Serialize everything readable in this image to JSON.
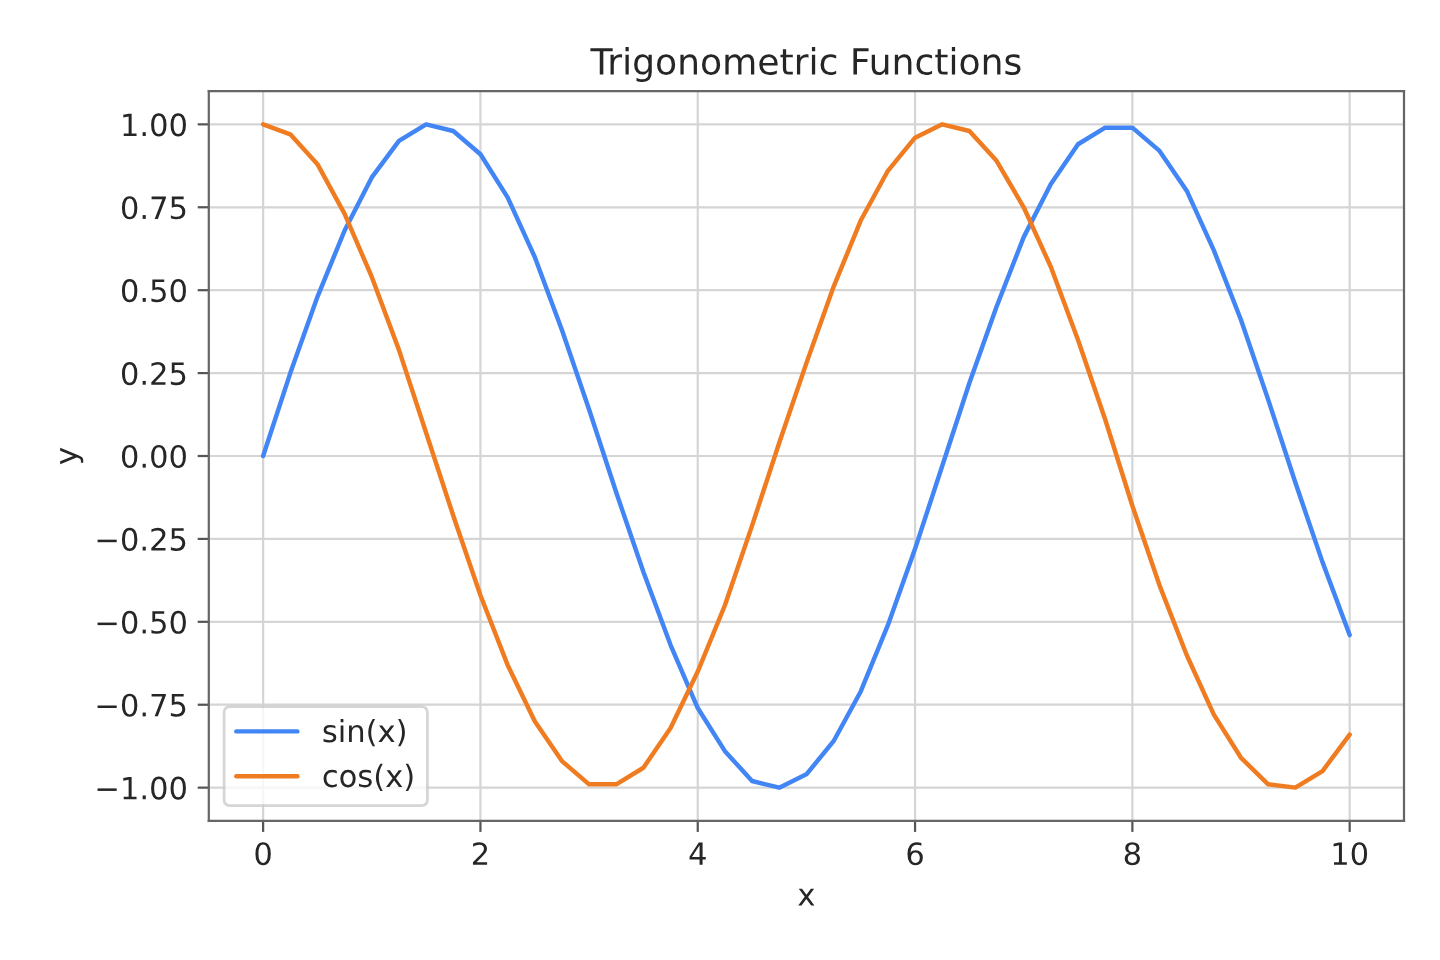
{
  "chart_data": {
    "type": "line",
    "title": "Trigonometric Functions",
    "xlabel": "x",
    "ylabel": "y",
    "x": [
      0,
      0.25,
      0.5,
      0.75,
      1,
      1.25,
      1.5,
      1.75,
      2,
      2.25,
      2.5,
      2.75,
      3,
      3.25,
      3.5,
      3.75,
      4,
      4.25,
      4.5,
      4.75,
      5,
      5.25,
      5.5,
      5.75,
      6,
      6.25,
      6.5,
      6.75,
      7,
      7.25,
      7.5,
      7.75,
      8,
      8.25,
      8.5,
      8.75,
      9,
      9.25,
      9.5,
      9.75,
      10
    ],
    "series": [
      {
        "name": "sin(x)",
        "color": "#4285f4",
        "values": [
          0,
          0.25,
          0.48,
          0.68,
          0.84,
          0.95,
          1.0,
          0.98,
          0.91,
          0.78,
          0.6,
          0.38,
          0.14,
          -0.11,
          -0.35,
          -0.57,
          -0.76,
          -0.89,
          -0.98,
          -1.0,
          -0.96,
          -0.86,
          -0.71,
          -0.51,
          -0.28,
          -0.03,
          0.22,
          0.45,
          0.66,
          0.82,
          0.94,
          0.99,
          0.99,
          0.92,
          0.8,
          0.62,
          0.41,
          0.17,
          -0.08,
          -0.32,
          -0.54
        ]
      },
      {
        "name": "cos(x)",
        "color": "#f07c22",
        "values": [
          1,
          0.97,
          0.88,
          0.73,
          0.54,
          0.32,
          0.07,
          -0.18,
          -0.42,
          -0.63,
          -0.8,
          -0.92,
          -0.99,
          -0.99,
          -0.94,
          -0.82,
          -0.65,
          -0.45,
          -0.21,
          0.04,
          0.28,
          0.51,
          0.71,
          0.86,
          0.96,
          1.0,
          0.98,
          0.89,
          0.75,
          0.57,
          0.35,
          0.11,
          -0.15,
          -0.39,
          -0.6,
          -0.78,
          -0.91,
          -0.99,
          -1.0,
          -0.95,
          -0.84
        ]
      }
    ],
    "xlim": [
      -0.5,
      10.5
    ],
    "ylim": [
      -1.1,
      1.1
    ],
    "xticks": [
      0,
      2,
      4,
      6,
      8,
      10
    ],
    "yticks": [
      {
        "value": -1,
        "label": "−1.00"
      },
      {
        "value": -0.75,
        "label": "−0.75"
      },
      {
        "value": -0.5,
        "label": "−0.50"
      },
      {
        "value": -0.25,
        "label": "−0.25"
      },
      {
        "value": 0,
        "label": "0.00"
      },
      {
        "value": 0.25,
        "label": "0.25"
      },
      {
        "value": 0.5,
        "label": "0.50"
      },
      {
        "value": 0.75,
        "label": "0.75"
      },
      {
        "value": 1,
        "label": "1.00"
      }
    ],
    "grid": true,
    "legend": "lower left"
  }
}
